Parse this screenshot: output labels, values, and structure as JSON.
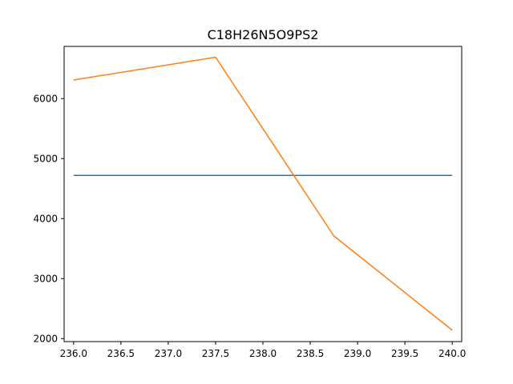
{
  "chart_data": {
    "type": "line",
    "title": "C18H26N5O9PS2",
    "xlabel": "",
    "ylabel": "",
    "xlim": [
      235.9,
      240.1
    ],
    "ylim": [
      1950,
      6870
    ],
    "x_ticks": [
      236.0,
      236.5,
      237.0,
      237.5,
      238.0,
      238.5,
      239.0,
      239.5,
      240.0
    ],
    "x_tick_labels": [
      "236.0",
      "236.5",
      "237.0",
      "237.5",
      "238.0",
      "238.5",
      "239.0",
      "239.5",
      "240.0"
    ],
    "y_ticks": [
      2000,
      3000,
      4000,
      5000,
      6000
    ],
    "y_tick_labels": [
      "2000",
      "3000",
      "4000",
      "5000",
      "6000"
    ],
    "grid": false,
    "legend": "none",
    "series": [
      {
        "color": "#1f77b4",
        "x": [
          236.0,
          240.0
        ],
        "y": [
          4720,
          4720
        ]
      },
      {
        "color": "#ff7f0e",
        "x": [
          236.0,
          237.5,
          238.75,
          240.0
        ],
        "y": [
          6310,
          6690,
          3710,
          2140
        ]
      }
    ]
  }
}
